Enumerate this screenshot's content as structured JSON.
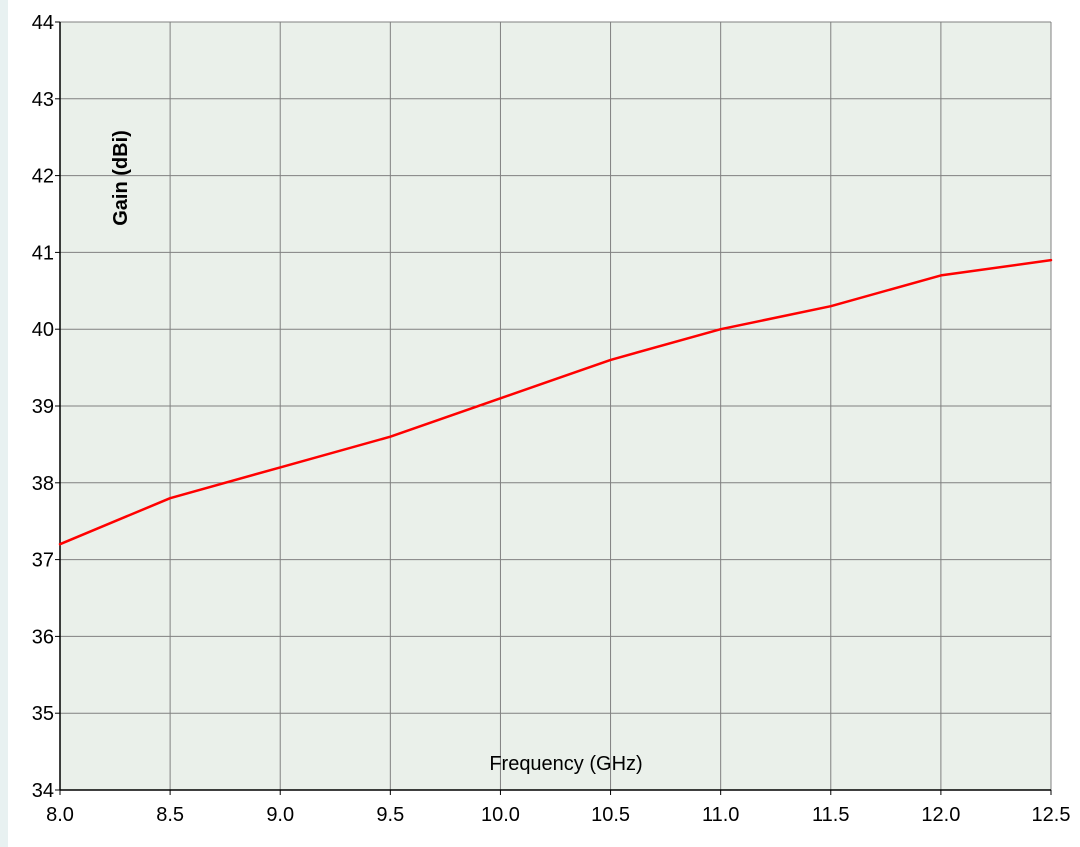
{
  "chart_data": {
    "type": "line",
    "title": "",
    "xlabel": "Frequency (GHz)",
    "ylabel": "Gain (dBi)",
    "xlim": [
      8.0,
      12.5
    ],
    "ylim": [
      34,
      44
    ],
    "x_ticks": [
      "8.0",
      "8.5",
      "9.0",
      "9.5",
      "10.0",
      "10.5",
      "11.0",
      "11.5",
      "12.0",
      "12.5"
    ],
    "y_ticks": [
      "34",
      "35",
      "36",
      "37",
      "38",
      "39",
      "40",
      "41",
      "42",
      "43",
      "44"
    ],
    "grid": true,
    "legend": "none",
    "series": [
      {
        "x": [
          8.0,
          8.5,
          9.0,
          9.5,
          10.0,
          10.5,
          11.0,
          11.5,
          12.0,
          12.5
        ],
        "values": [
          37.2,
          37.8,
          38.2,
          38.6,
          39.1,
          39.6,
          40.0,
          40.3,
          40.7,
          40.9
        ],
        "color": "#ff0000"
      }
    ],
    "colors": {
      "plot_background": "#eaf0ea",
      "grid": "#808080",
      "axis": "#000000",
      "page_edge": "#e8f1f1"
    }
  }
}
